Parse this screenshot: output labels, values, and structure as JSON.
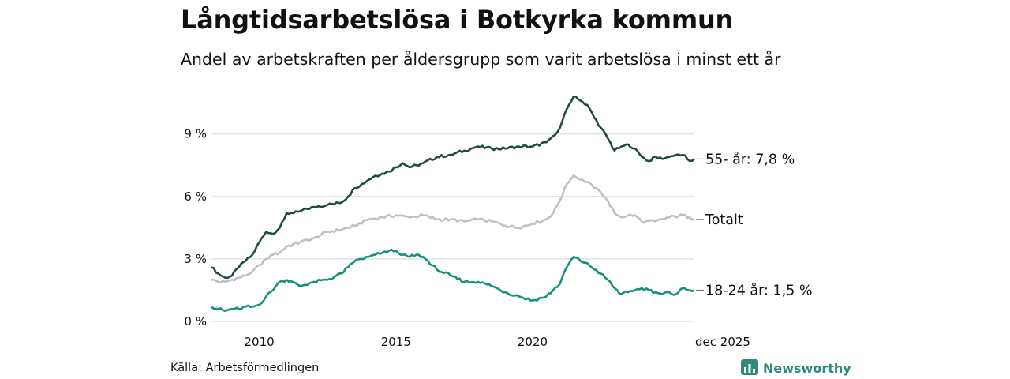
{
  "title": "Långtidsarbetslösa i Botkyrka kommun",
  "subtitle": "Andel av arbetskraften per åldersgrupp som varit arbetslösa i minst ett år",
  "source": "Källa: Arbetsförmedlingen",
  "brand": "Newsworthy",
  "colors": {
    "older": "#1f4b43",
    "total": "#bfbfcb",
    "youth": "#17907c",
    "grid": "#dddddd",
    "brand": "#2f8a7c"
  },
  "chart_data": {
    "type": "line",
    "title": "Långtidsarbetslösa i Botkyrka kommun",
    "xlabel": "",
    "ylabel": "",
    "x_range": [
      2008.25,
      2025.92
    ],
    "ylim": [
      0,
      11
    ],
    "y_ticks": [
      0,
      3,
      6,
      9
    ],
    "y_tick_labels": [
      "0 %",
      "3 %",
      "6 %",
      "9 %"
    ],
    "x_ticks": [
      2010,
      2015,
      2020,
      2025.92
    ],
    "x_tick_labels": [
      "2010",
      "2015",
      "2020",
      "dec 2025"
    ],
    "grid": true,
    "series": [
      {
        "name": "55- år",
        "label": "55- år: 7,8 %",
        "color_key": "older",
        "x": [
          2008.25,
          2008.5,
          2008.75,
          2009.0,
          2009.25,
          2009.5,
          2009.75,
          2010.0,
          2010.25,
          2010.5,
          2010.75,
          2011.0,
          2011.25,
          2011.5,
          2011.75,
          2012.0,
          2012.5,
          2013.0,
          2013.25,
          2013.5,
          2013.75,
          2014.0,
          2014.25,
          2014.5,
          2014.75,
          2015.0,
          2015.25,
          2015.5,
          2015.75,
          2016.0,
          2016.5,
          2017.0,
          2017.5,
          2018.0,
          2018.5,
          2019.0,
          2019.5,
          2020.0,
          2020.5,
          2020.75,
          2021.0,
          2021.25,
          2021.5,
          2021.75,
          2022.0,
          2022.25,
          2022.5,
          2022.75,
          2023.0,
          2023.25,
          2023.5,
          2023.75,
          2024.0,
          2024.25,
          2024.5,
          2024.75,
          2025.0,
          2025.25,
          2025.5,
          2025.75,
          2025.92
        ],
        "values": [
          2.6,
          2.3,
          2.1,
          2.2,
          2.6,
          2.9,
          3.2,
          3.8,
          4.3,
          4.2,
          4.5,
          5.2,
          5.2,
          5.3,
          5.4,
          5.5,
          5.6,
          5.7,
          6.0,
          6.4,
          6.6,
          6.8,
          7.0,
          7.1,
          7.2,
          7.4,
          7.6,
          7.4,
          7.5,
          7.6,
          7.9,
          8.0,
          8.2,
          8.4,
          8.3,
          8.3,
          8.4,
          8.4,
          8.6,
          8.9,
          9.3,
          10.2,
          10.8,
          10.6,
          10.4,
          9.8,
          9.3,
          8.8,
          8.2,
          8.4,
          8.5,
          8.3,
          7.9,
          7.7,
          7.9,
          7.8,
          7.9,
          8.0,
          8.0,
          7.7,
          7.8
        ]
      },
      {
        "name": "Totalt",
        "label": "Totalt",
        "color_key": "total",
        "x": [
          2008.25,
          2008.5,
          2008.75,
          2009.0,
          2009.25,
          2009.5,
          2009.75,
          2010.0,
          2010.25,
          2010.5,
          2010.75,
          2011.0,
          2011.5,
          2012.0,
          2012.5,
          2013.0,
          2013.5,
          2014.0,
          2014.5,
          2015.0,
          2015.5,
          2016.0,
          2016.5,
          2017.0,
          2017.5,
          2018.0,
          2018.5,
          2019.0,
          2019.5,
          2020.0,
          2020.5,
          2020.75,
          2021.0,
          2021.25,
          2021.5,
          2021.75,
          2022.0,
          2022.25,
          2022.5,
          2022.75,
          2023.0,
          2023.25,
          2023.5,
          2023.75,
          2024.0,
          2024.5,
          2025.0,
          2025.5,
          2025.75,
          2025.92
        ],
        "values": [
          2.0,
          1.9,
          1.9,
          2.0,
          2.1,
          2.2,
          2.4,
          2.7,
          3.0,
          3.2,
          3.3,
          3.6,
          3.8,
          4.0,
          4.3,
          4.4,
          4.6,
          4.9,
          5.0,
          5.1,
          5.0,
          5.1,
          4.9,
          4.9,
          4.8,
          4.9,
          4.8,
          4.6,
          4.5,
          4.7,
          4.9,
          5.2,
          5.8,
          6.6,
          7.0,
          6.8,
          6.7,
          6.4,
          6.2,
          5.8,
          5.2,
          5.0,
          5.1,
          5.1,
          4.8,
          4.8,
          5.0,
          5.1,
          5.0,
          4.9
        ]
      },
      {
        "name": "18-24 år",
        "label": "18-24 år: 1,5 %",
        "color_key": "youth",
        "x": [
          2008.25,
          2008.5,
          2008.75,
          2009.0,
          2009.25,
          2009.5,
          2009.75,
          2010.0,
          2010.25,
          2010.5,
          2010.75,
          2011.0,
          2011.5,
          2012.0,
          2012.5,
          2013.0,
          2013.25,
          2013.5,
          2013.75,
          2014.0,
          2014.25,
          2014.5,
          2014.75,
          2015.0,
          2015.25,
          2015.5,
          2015.75,
          2016.0,
          2016.5,
          2017.0,
          2017.5,
          2018.0,
          2018.5,
          2019.0,
          2019.5,
          2020.0,
          2020.5,
          2020.75,
          2021.0,
          2021.25,
          2021.5,
          2021.75,
          2022.0,
          2022.25,
          2022.5,
          2022.75,
          2023.0,
          2023.25,
          2023.5,
          2023.75,
          2024.0,
          2024.25,
          2024.5,
          2024.75,
          2025.0,
          2025.25,
          2025.5,
          2025.75,
          2025.92
        ],
        "values": [
          0.7,
          0.6,
          0.5,
          0.6,
          0.6,
          0.7,
          0.7,
          0.8,
          1.2,
          1.5,
          1.9,
          2.0,
          1.7,
          1.9,
          2.0,
          2.3,
          2.6,
          2.9,
          3.0,
          3.1,
          3.2,
          3.3,
          3.4,
          3.4,
          3.2,
          3.1,
          3.2,
          3.1,
          2.5,
          2.2,
          1.9,
          1.9,
          1.7,
          1.4,
          1.2,
          1.0,
          1.2,
          1.5,
          1.8,
          2.6,
          3.1,
          2.9,
          2.8,
          2.5,
          2.3,
          2.0,
          1.6,
          1.3,
          1.4,
          1.5,
          1.6,
          1.5,
          1.4,
          1.3,
          1.4,
          1.3,
          1.6,
          1.5,
          1.5
        ]
      }
    ]
  }
}
